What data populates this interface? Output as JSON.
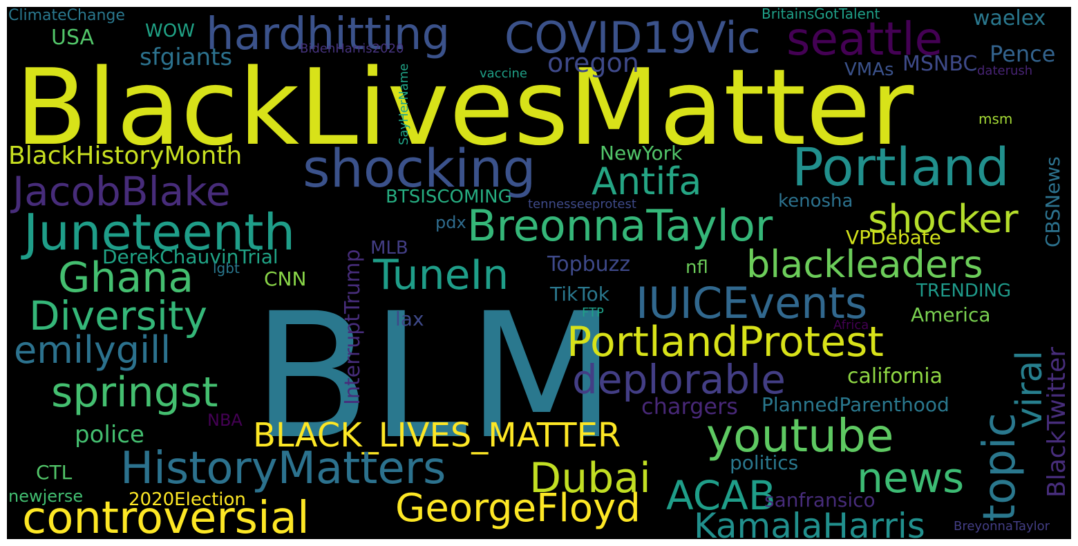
{
  "words": [
    {
      "text": "BLM",
      "color": "#2a788e"
    },
    {
      "text": "BlackLivesMatter",
      "color": "#d8e219"
    },
    {
      "text": "hardhitting",
      "color": "#3b528b"
    },
    {
      "text": "COVID19Vic",
      "color": "#3b528b"
    },
    {
      "text": "seattle",
      "color": "#440154"
    },
    {
      "text": "shocking",
      "color": "#3b528b"
    },
    {
      "text": "Portland",
      "color": "#21908d"
    },
    {
      "text": "JacobBlake",
      "color": "#472c7a"
    },
    {
      "text": "Juneteenth",
      "color": "#1f9e89"
    },
    {
      "text": "BreonnaTaylor",
      "color": "#35b779"
    },
    {
      "text": "Antifa",
      "color": "#25a584"
    },
    {
      "text": "shocker",
      "color": "#b5de2b"
    },
    {
      "text": "blackleaders",
      "color": "#6ccd5a"
    },
    {
      "text": "Ghana",
      "color": "#44bf70"
    },
    {
      "text": "TuneIn",
      "color": "#1f9e89"
    },
    {
      "text": "IUICEvents",
      "color": "#31688e"
    },
    {
      "text": "Diversity",
      "color": "#35b779"
    },
    {
      "text": "PortlandProtest",
      "color": "#d8e219"
    },
    {
      "text": "emilygill",
      "color": "#2c728e"
    },
    {
      "text": "deplorable",
      "color": "#433e85"
    },
    {
      "text": "springst",
      "color": "#44bf70"
    },
    {
      "text": "youtube",
      "color": "#5ec962"
    },
    {
      "text": "topic",
      "color": "#2a788e"
    },
    {
      "text": "viral",
      "color": "#277f8e"
    },
    {
      "text": "BLACK_LIVES_MATTER",
      "color": "#fde725"
    },
    {
      "text": "HistoryMatters",
      "color": "#2c728e"
    },
    {
      "text": "Dubai",
      "color": "#c2df23"
    },
    {
      "text": "news",
      "color": "#3dbc74"
    },
    {
      "text": "ACAB",
      "color": "#1f9e89"
    },
    {
      "text": "controversial",
      "color": "#fde725"
    },
    {
      "text": "GeorgeFloyd",
      "color": "#fde725"
    },
    {
      "text": "KamalaHarris",
      "color": "#21908d"
    },
    {
      "text": "BlackTwitter",
      "color": "#472d7b"
    },
    {
      "text": "BlackHistoryMonth",
      "color": "#c8e020"
    },
    {
      "text": "ClimateChange",
      "color": "#2a788e"
    },
    {
      "text": "USA",
      "color": "#52c569"
    },
    {
      "text": "WOW",
      "color": "#20a386"
    },
    {
      "text": "sfgiants",
      "color": "#2c728e"
    },
    {
      "text": "oregon",
      "color": "#3e4989"
    },
    {
      "text": "BidenHarris2020",
      "color": "#46337e"
    },
    {
      "text": "BritainsGotTalent",
      "color": "#1fa088"
    },
    {
      "text": "waelex",
      "color": "#2a788e"
    },
    {
      "text": "Pence",
      "color": "#33638d"
    },
    {
      "text": "MSNBC",
      "color": "#3e4a89"
    },
    {
      "text": "VMAs",
      "color": "#3b528b"
    },
    {
      "text": "vaccine",
      "color": "#1fa187"
    },
    {
      "text": "daterush",
      "color": "#482475"
    },
    {
      "text": "msm",
      "color": "#a5db36"
    },
    {
      "text": "SayHerName",
      "color": "#20a386"
    },
    {
      "text": "NewYork",
      "color": "#52c569"
    },
    {
      "text": "CBSNews",
      "color": "#2c728e"
    },
    {
      "text": "BTSISCOMING",
      "color": "#26ad81"
    },
    {
      "text": "tennesseeprotest",
      "color": "#3e4a89"
    },
    {
      "text": "kenosha",
      "color": "#2c728e"
    },
    {
      "text": "pdx",
      "color": "#2f6c8e"
    },
    {
      "text": "InterruptTrump",
      "color": "#472d7b"
    },
    {
      "text": "MLB",
      "color": "#433e85"
    },
    {
      "text": "VPDebate",
      "color": "#d2e21b"
    },
    {
      "text": "DerekChauvinTrial",
      "color": "#20a486"
    },
    {
      "text": "Topbuzz",
      "color": "#3e4989"
    },
    {
      "text": "nfl",
      "color": "#6ccd5a"
    },
    {
      "text": "lgbt",
      "color": "#2a788e"
    },
    {
      "text": "CNN",
      "color": "#89d548"
    },
    {
      "text": "TikTok",
      "color": "#2a788e"
    },
    {
      "text": "TRENDING",
      "color": "#1f9a8a"
    },
    {
      "text": "FTP",
      "color": "#1fa188"
    },
    {
      "text": "lax",
      "color": "#3e4989"
    },
    {
      "text": "America",
      "color": "#7ad151"
    },
    {
      "text": "Africa",
      "color": "#440154"
    },
    {
      "text": "california",
      "color": "#8fd744"
    },
    {
      "text": "chargers",
      "color": "#482878"
    },
    {
      "text": "PlannedParenthood",
      "color": "#2a788e"
    },
    {
      "text": "NBA",
      "color": "#440154"
    },
    {
      "text": "police",
      "color": "#44bf70"
    },
    {
      "text": "politics",
      "color": "#2a788e"
    },
    {
      "text": "CTL",
      "color": "#52c569"
    },
    {
      "text": "newjerse",
      "color": "#42be71"
    },
    {
      "text": "2020Election",
      "color": "#fde725"
    },
    {
      "text": "sanfransico",
      "color": "#472c7a"
    },
    {
      "text": "BreyonnaTaylor",
      "color": "#433e85"
    }
  ]
}
